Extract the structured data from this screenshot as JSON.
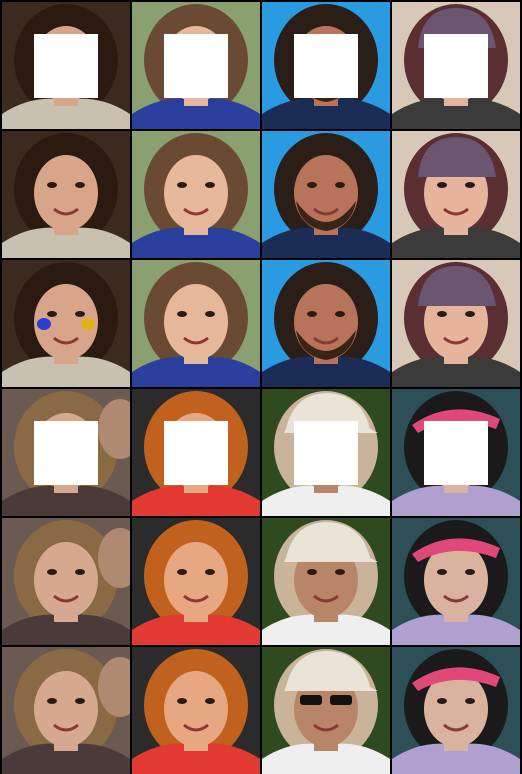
{
  "figure": {
    "columns": 4,
    "row_groups": [
      {
        "rows": [
          "masked-input",
          "output-a",
          "output-b"
        ],
        "subjects": [
          {
            "hair": "#2a1a12",
            "skin": "#d9a58a",
            "bg": "#3b2a20",
            "top": "#c8c0b0",
            "face_paint": true
          },
          {
            "hair": "#6b4a33",
            "skin": "#e7b79b",
            "bg": "#8aa070",
            "top": "#2b3f9e",
            "face_paint": false
          },
          {
            "hair": "#2b1e18",
            "skin": "#b8745a",
            "bg": "#2a9be0",
            "top": "#1b2d57",
            "beard": true
          },
          {
            "hair": "#5b2e33",
            "skin": "#e6b39c",
            "bg": "#d8c8b8",
            "top": "#3b3b3b",
            "beanie": true
          }
        ]
      },
      {
        "rows": [
          "masked-input",
          "output-a",
          "output-b"
        ],
        "subjects": [
          {
            "hair": "#8a6a45",
            "skin": "#d7a890",
            "bg": "#6a5a52",
            "top": "#4a3a3a",
            "companion": true
          },
          {
            "hair": "#c0611e",
            "skin": "#e7a782",
            "bg": "#2b2b2b",
            "top": "#e23a32",
            "redhead": true
          },
          {
            "hair": "#c9b49a",
            "skin": "#b98568",
            "bg": "#2f4a1f",
            "top": "#efefef",
            "cap": true
          },
          {
            "hair": "#1a1a1a",
            "skin": "#d9b39f",
            "bg": "#2d5058",
            "top": "#b0a0d0",
            "visor": true
          }
        ]
      }
    ]
  }
}
